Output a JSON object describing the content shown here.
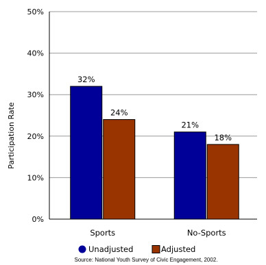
{
  "chart_data": {
    "type": "bar",
    "categories": [
      "Sports",
      "No-Sports"
    ],
    "series": [
      {
        "name": "Unadjusted",
        "values": [
          32,
          21
        ],
        "labels": [
          "32%",
          "21%"
        ],
        "color": "#000099"
      },
      {
        "name": "Adjusted",
        "values": [
          24,
          18
        ],
        "labels": [
          "24%",
          "18%"
        ],
        "color": "#993300"
      }
    ],
    "ylabel": "Participation Rate",
    "xlabel": "",
    "ylim": [
      0,
      50
    ],
    "yticks": [
      0,
      10,
      20,
      30,
      40,
      50
    ],
    "ytick_labels": [
      "0%",
      "10%",
      "20%",
      "30%",
      "40%",
      "50%"
    ],
    "grid": true,
    "legend_position": "bottom",
    "source": "Source: National Youth Survey of Civic Engagement, 2002."
  }
}
